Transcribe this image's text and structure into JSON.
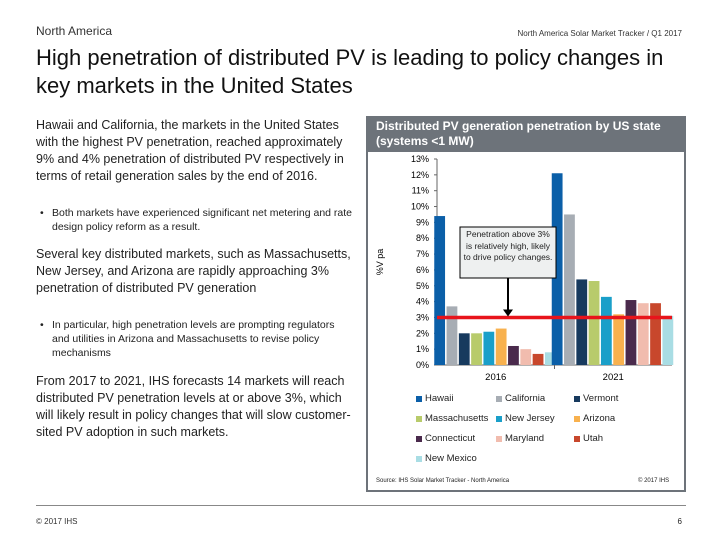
{
  "header": {
    "region": "North America",
    "tracker": "North America Solar Market Tracker / Q1 2017"
  },
  "title": "High penetration of distributed PV is leading to policy changes in key markets in the United States",
  "body": {
    "p1": "Hawaii and California, the markets in the United States with the highest PV penetration, reached approximately 9% and 4% penetration of distributed PV respectively in terms of retail generation sales by the end of 2016.",
    "b1": "Both markets have experienced significant net metering and rate design policy reform as a result.",
    "p2": "Several key distributed markets, such as Massachusetts, New Jersey, and Arizona are rapidly approaching 3% penetration of distributed PV generation",
    "b2": "In particular, high penetration levels are prompting regulators and utilities in Arizona and Massachusetts to revise policy mechanisms",
    "p3": "From 2017 to 2021, IHS forecasts 14 markets will reach distributed PV penetration levels at or above 3%, which will likely result in policy changes that will slow customer-sited PV adoption in such markets."
  },
  "chart_data": {
    "type": "bar",
    "title": "Distributed PV generation penetration by US state (systems <1 MW)",
    "ylabel": "% of retail",
    "ylabel_visible": "%V pa",
    "ylim": [
      0,
      13
    ],
    "yticks": [
      "0%",
      "1%",
      "2%",
      "3%",
      "4%",
      "5%",
      "6%",
      "7%",
      "8%",
      "9%",
      "10%",
      "11%",
      "12%",
      "13%"
    ],
    "categories": [
      "2016",
      "2021"
    ],
    "threshold": 3,
    "threshold_color": "#e8141b",
    "annotation": "Penetration above 3% is relatively high, likely to drive policy changes.",
    "legend_placement": "bottom",
    "series": [
      {
        "name": "Hawaii",
        "color": "#0b5fa8",
        "values": [
          9.4,
          12.1
        ]
      },
      {
        "name": "California",
        "color": "#a7adb4",
        "values": [
          3.7,
          9.5
        ]
      },
      {
        "name": "Vermont",
        "color": "#173a5e",
        "values": [
          2.0,
          5.4
        ]
      },
      {
        "name": "Massachusetts",
        "color": "#b8cb6b",
        "values": [
          2.0,
          5.3
        ]
      },
      {
        "name": "New Jersey",
        "color": "#1a9fc9",
        "values": [
          2.1,
          4.3
        ]
      },
      {
        "name": "Arizona",
        "color": "#f8b14e",
        "values": [
          2.3,
          3.2
        ]
      },
      {
        "name": "Connecticut",
        "color": "#4a2a4c",
        "values": [
          1.2,
          4.1
        ]
      },
      {
        "name": "Maryland",
        "color": "#f1bcae",
        "values": [
          1.0,
          3.9
        ]
      },
      {
        "name": "Utah",
        "color": "#c8472c",
        "values": [
          0.7,
          3.9
        ]
      },
      {
        "name": "New Mexico",
        "color": "#a9dde4",
        "values": [
          0.8,
          3.1
        ]
      }
    ],
    "source": "Source: IHS Solar Market Tracker - North America",
    "copyright": "© 2017 IHS"
  },
  "footer": {
    "copyright": "© 2017 IHS",
    "page": "6"
  }
}
